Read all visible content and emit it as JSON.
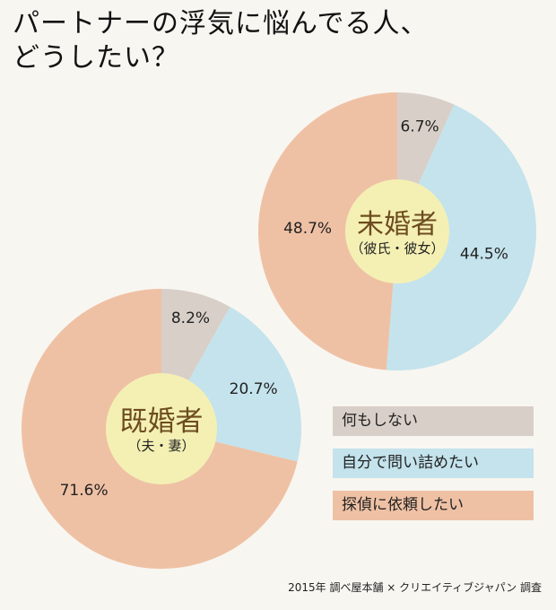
{
  "title": {
    "line1": "パートナーの浮気に悩んでる人、",
    "line2": "どうしたい？"
  },
  "colors": {
    "nothing": "#d8cfc8",
    "confront": "#c4e3ec",
    "detective": "#efc1a4",
    "center": "#f4f0b4",
    "center_text": "#6d4c1f"
  },
  "chart_data": [
    {
      "type": "pie",
      "title": "未婚者",
      "subtitle": "（彼氏・彼女）",
      "categories": [
        "何もしない",
        "自分で問い詰めたい",
        "探偵に依頼したい"
      ],
      "values": [
        6.7,
        44.5,
        48.7
      ],
      "labels": [
        "6.7%",
        "44.5%",
        "48.7%"
      ]
    },
    {
      "type": "pie",
      "title": "既婚者",
      "subtitle": "（夫・妻）",
      "categories": [
        "何もしない",
        "自分で問い詰めたい",
        "探偵に依頼したい"
      ],
      "values": [
        8.2,
        20.7,
        71.6
      ],
      "labels": [
        "8.2%",
        "20.7%",
        "71.6%"
      ]
    }
  ],
  "legend": [
    {
      "key": "nothing",
      "label": "何もしない"
    },
    {
      "key": "confront",
      "label": "自分で問い詰めたい"
    },
    {
      "key": "detective",
      "label": "探偵に依頼したい"
    }
  ],
  "credit": "2015年 調べ屋本舗 × クリエイティブジャパン 調査"
}
